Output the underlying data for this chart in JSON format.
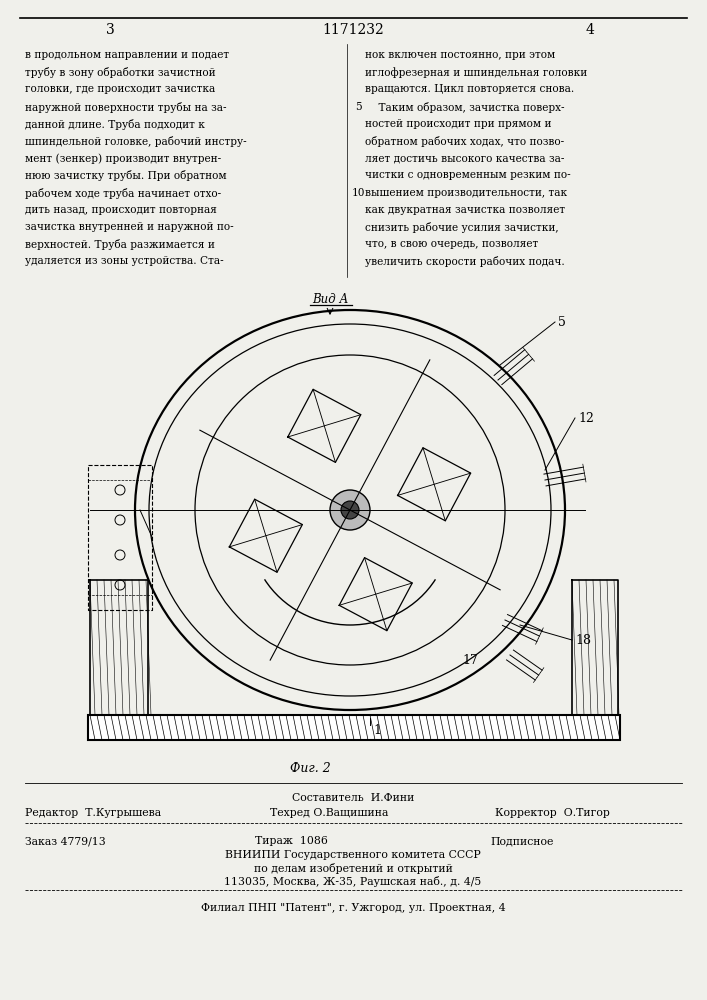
{
  "page_width": 7.07,
  "page_height": 10.0,
  "bg_color": "#f0f0eb",
  "patent_number": "1171232",
  "page_left_num": "3",
  "page_right_num": "4",
  "left_column_text": [
    "в продольном направлении и подает",
    "трубу в зону обработки зачистной",
    "головки, где происходит зачистка",
    "наружной поверхности трубы на за-",
    "данной длине. Труба подходит к",
    "шпиндельной головке, рабочий инстру-",
    "мент (зенкер) производит внутрен-",
    "нюю зачистку трубы. При обратном",
    "рабочем ходе труба начинает отхо-",
    "дить назад, происходит повторная",
    "зачистка внутренней и наружной по-",
    "верхностей. Труба разжимается и",
    "удаляется из зоны устройства. Ста-"
  ],
  "right_column_text": [
    "нок включен постоянно, при этом",
    "иглофрезерная и шпиндельная головки",
    "вращаются. Цикл повторяется снова.",
    "    Таким образом, зачистка поверх-",
    "ностей происходит при прямом и",
    "обратном рабочих ходах, что позво-",
    "ляет достичь высокого качества за-",
    "чистки с одновременным резким по-",
    "вышением производительности, так",
    "как двукратная зачистка позволяет",
    "снизить рабочие усилия зачистки,",
    "что, в свою очередь, позволяет",
    "увеличить скорости рабочих подач."
  ],
  "view_label": "Вид А",
  "fig_label": "Фиг. 2",
  "label_1": "1",
  "label_5": "5",
  "label_12": "12",
  "label_17": "17",
  "label_18": "18",
  "footer_sestavitel": "Составитель  И.Фини",
  "footer_redaktor": "Редактор  Т.Кугрышева",
  "footer_tehred": "Техред О.Ващишина",
  "footer_korrektor": "Корректор  О.Тигор",
  "footer_zakaz": "Заказ 4779/13",
  "footer_tirazh": "Тираж  1086",
  "footer_podpisnoe": "Подписное",
  "footer_vniip1": "ВНИИПИ Государственного комитета СССР",
  "footer_vniip2": "по делам изобретений и открытий",
  "footer_vniip3": "113035, Москва, Ж-35, Раушская наб., д. 4/5",
  "footer_filial": "Филиал ПНП \"Патент\", г. Ужгород, ул. Проектная, 4"
}
